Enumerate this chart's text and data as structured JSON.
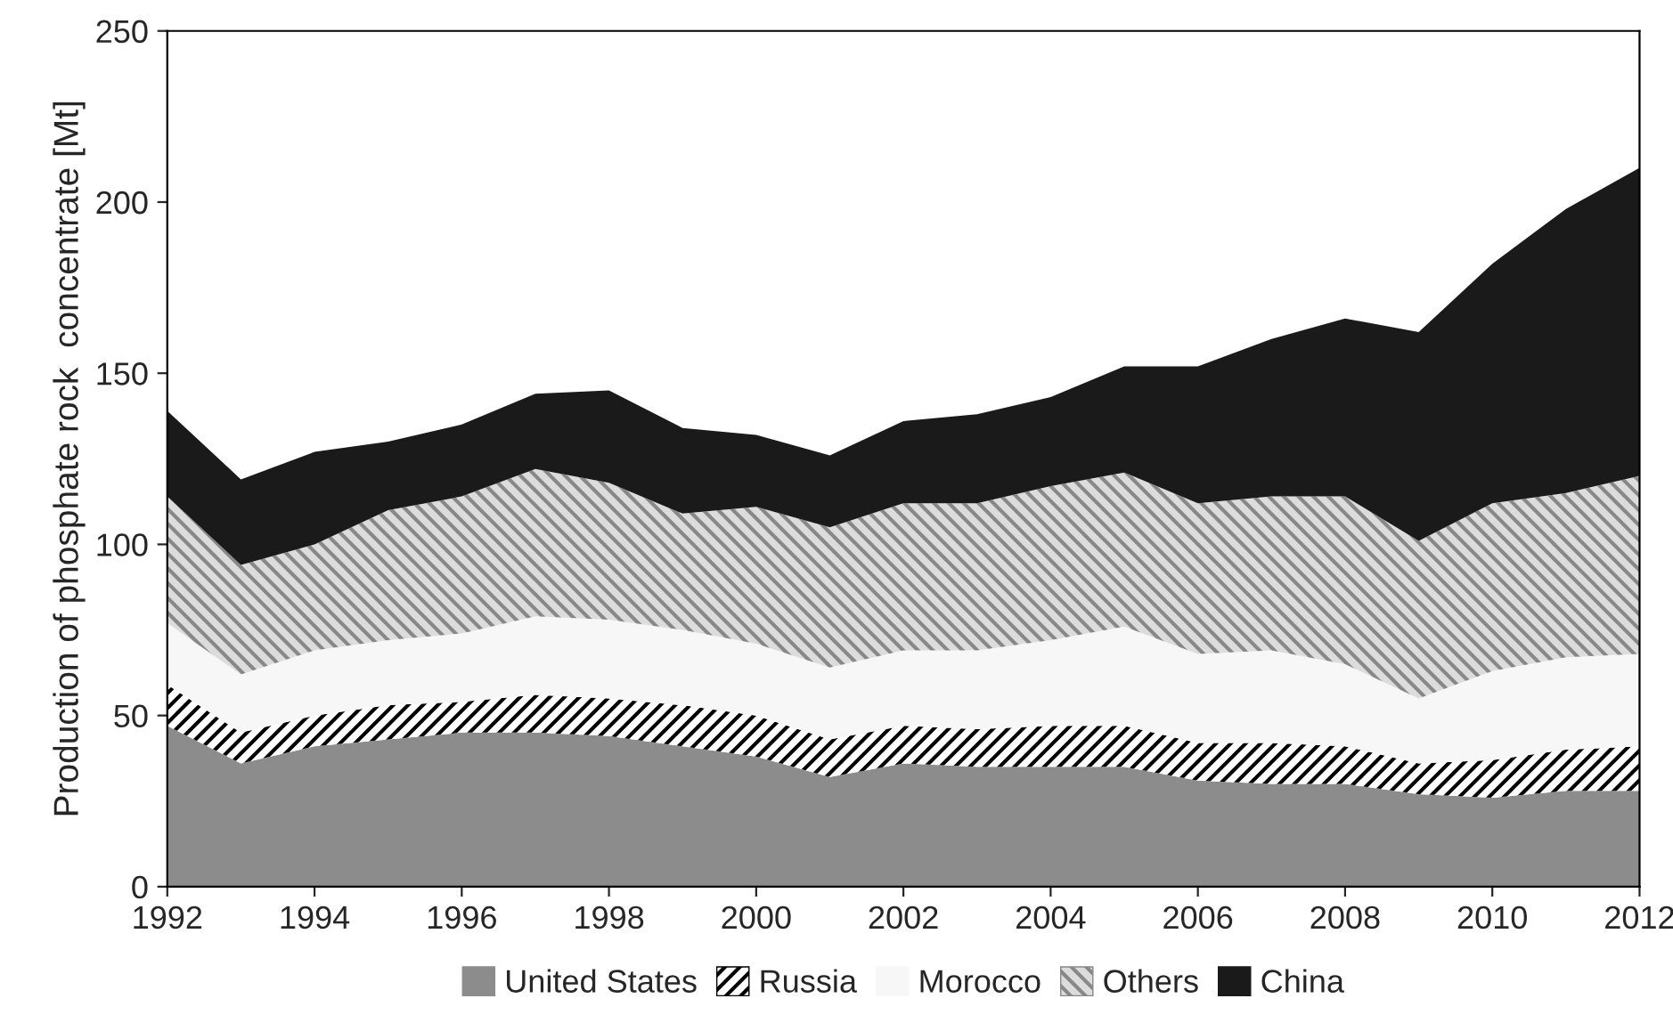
{
  "chart_data": {
    "type": "area",
    "stacked": true,
    "ylabel": "Production of phosphate rock  concentrate [Mt]",
    "x": [
      1992,
      1993,
      1994,
      1995,
      1996,
      1997,
      1998,
      1999,
      2000,
      2001,
      2002,
      2003,
      2004,
      2005,
      2006,
      2007,
      2008,
      2009,
      2010,
      2011,
      2012
    ],
    "series": [
      {
        "name": "United States",
        "color": "#8c8c8c",
        "values": [
          47,
          36,
          41,
          43,
          45,
          45,
          44,
          41,
          38,
          32,
          36,
          35,
          35,
          35,
          31,
          30,
          30,
          27,
          26,
          28,
          28
        ]
      },
      {
        "name": "Russia",
        "color": "#ffffff",
        "values": [
          12,
          9,
          9,
          10,
          9,
          11,
          11,
          12,
          12,
          11,
          11,
          11,
          12,
          12,
          11,
          12,
          11,
          9,
          11,
          12,
          13
        ]
      },
      {
        "name": "Morocco",
        "color": "#f7f7f7",
        "values": [
          18,
          17,
          19,
          19,
          20,
          23,
          23,
          22,
          21,
          21,
          22,
          23,
          25,
          29,
          26,
          27,
          24,
          19,
          26,
          27,
          27
        ]
      },
      {
        "name": "Others",
        "color": "#dcdcdc",
        "values": [
          37,
          32,
          31,
          38,
          40,
          43,
          40,
          34,
          40,
          41,
          43,
          43,
          45,
          45,
          44,
          45,
          49,
          46,
          49,
          48,
          52
        ]
      },
      {
        "name": "China",
        "color": "#1a1a1a",
        "values": [
          25,
          25,
          27,
          20,
          21,
          22,
          27,
          25,
          21,
          21,
          24,
          26,
          26,
          31,
          40,
          46,
          52,
          61,
          70,
          83,
          90
        ]
      }
    ],
    "xlim": [
      1992,
      2012
    ],
    "xticks": [
      1992,
      1994,
      1996,
      1998,
      2000,
      2002,
      2004,
      2006,
      2008,
      2010,
      2012
    ],
    "ylim": [
      0,
      250
    ],
    "yticks": [
      0,
      50,
      100,
      150,
      200,
      250
    ],
    "grid": false,
    "legend": "bottom"
  }
}
